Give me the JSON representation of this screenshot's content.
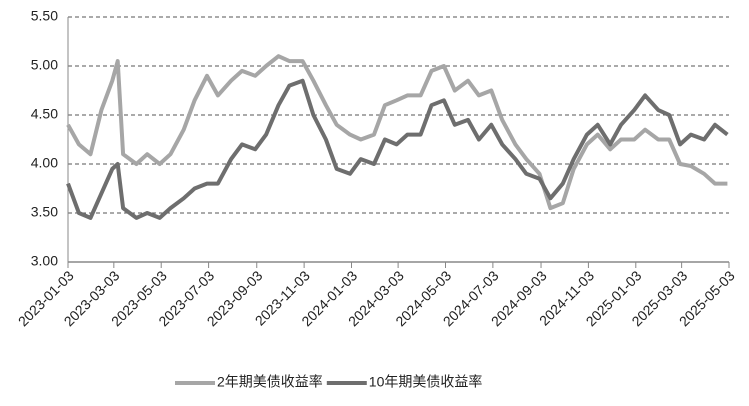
{
  "chart_data": {
    "type": "line",
    "x": [
      "2023-01-03",
      "2023-01-17",
      "2023-02-01",
      "2023-02-15",
      "2023-03-01",
      "2023-03-08",
      "2023-03-15",
      "2023-04-01",
      "2023-04-15",
      "2023-05-01",
      "2023-05-15",
      "2023-06-01",
      "2023-06-15",
      "2023-07-01",
      "2023-07-15",
      "2023-08-01",
      "2023-08-15",
      "2023-09-01",
      "2023-09-15",
      "2023-10-01",
      "2023-10-15",
      "2023-11-01",
      "2023-11-15",
      "2023-12-01",
      "2023-12-15",
      "2024-01-01",
      "2024-01-15",
      "2024-02-01",
      "2024-02-15",
      "2024-03-01",
      "2024-03-15",
      "2024-04-01",
      "2024-04-15",
      "2024-05-01",
      "2024-05-15",
      "2024-06-01",
      "2024-06-15",
      "2024-07-01",
      "2024-07-15",
      "2024-08-01",
      "2024-08-15",
      "2024-09-01",
      "2024-09-15",
      "2024-10-01",
      "2024-10-15",
      "2024-11-01",
      "2024-11-15",
      "2024-12-01",
      "2024-12-15",
      "2025-01-01",
      "2025-01-15",
      "2025-02-01",
      "2025-02-15",
      "2025-03-01",
      "2025-03-15",
      "2025-04-01",
      "2025-04-15",
      "2025-05-01"
    ],
    "series": [
      {
        "name": "2年期美债收益率",
        "color": "#a6a6a6",
        "values": [
          4.4,
          4.2,
          4.1,
          4.55,
          4.85,
          5.05,
          4.1,
          4.0,
          4.1,
          4.0,
          4.1,
          4.35,
          4.65,
          4.9,
          4.7,
          4.85,
          4.95,
          4.9,
          5.0,
          5.1,
          5.05,
          5.05,
          4.85,
          4.6,
          4.4,
          4.3,
          4.25,
          4.3,
          4.6,
          4.65,
          4.7,
          4.7,
          4.95,
          5.0,
          4.75,
          4.85,
          4.7,
          4.75,
          4.45,
          4.2,
          4.05,
          3.9,
          3.55,
          3.6,
          3.95,
          4.2,
          4.3,
          4.15,
          4.25,
          4.25,
          4.35,
          4.25,
          4.25,
          4.0,
          3.98,
          3.9,
          3.8,
          3.8
        ]
      },
      {
        "name": "10年期美债收益率",
        "color": "#6e6e6e",
        "values": [
          3.8,
          3.5,
          3.45,
          3.7,
          3.95,
          4.0,
          3.55,
          3.45,
          3.5,
          3.45,
          3.55,
          3.65,
          3.75,
          3.8,
          3.8,
          4.05,
          4.2,
          4.15,
          4.3,
          4.6,
          4.8,
          4.85,
          4.5,
          4.25,
          3.95,
          3.9,
          4.05,
          4.0,
          4.25,
          4.2,
          4.3,
          4.3,
          4.6,
          4.65,
          4.4,
          4.45,
          4.25,
          4.4,
          4.2,
          4.05,
          3.9,
          3.85,
          3.65,
          3.8,
          4.05,
          4.3,
          4.4,
          4.2,
          4.4,
          4.55,
          4.7,
          4.55,
          4.5,
          4.2,
          4.3,
          4.25,
          4.4,
          4.3
        ]
      }
    ],
    "xlim": [
      "2023-01-03",
      "2025-05-03"
    ],
    "xticks": [
      "2023-01-03",
      "2023-03-03",
      "2023-05-03",
      "2023-07-03",
      "2023-09-03",
      "2023-11-03",
      "2024-01-03",
      "2024-03-03",
      "2024-05-03",
      "2024-07-03",
      "2024-09-03",
      "2024-11-03",
      "2025-01-03",
      "2025-03-03",
      "2025-05-03"
    ],
    "ylim": [
      3,
      5.5
    ],
    "yticks": [
      {
        "value": 3,
        "label": "3.00"
      },
      {
        "value": 3.5,
        "label": "3.50"
      },
      {
        "value": 4,
        "label": "4.00"
      },
      {
        "value": 4.5,
        "label": "4.50"
      },
      {
        "value": 5,
        "label": "5.00"
      },
      {
        "value": 5.5,
        "label": "5.50"
      }
    ],
    "grid": true,
    "legend": "bottom"
  }
}
